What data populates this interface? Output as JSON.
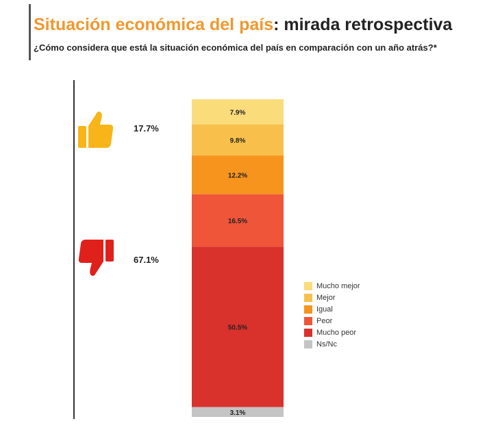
{
  "header": {
    "title_accent": "Situación económica del país",
    "title_rest": ": mirada retrospectiva",
    "subtitle": "¿Cómo considera que está la situación económica del país en comparación con un año atrás?*"
  },
  "summary": {
    "positive": {
      "icon": "thumbs-up-icon",
      "color": "#f7b519",
      "label": "17.7%"
    },
    "negative": {
      "icon": "thumbs-down-icon",
      "color": "#e0201b",
      "label": "67.1%"
    }
  },
  "chart_data": {
    "type": "bar",
    "stacked": true,
    "categories": [
      ""
    ],
    "series": [
      {
        "name": "Mucho mejor",
        "values": [
          7.9
        ],
        "label": "7.9%",
        "color": "#fbdc7b"
      },
      {
        "name": "Mejor",
        "values": [
          9.8
        ],
        "label": "9.8%",
        "color": "#f8c04b"
      },
      {
        "name": "Igual",
        "values": [
          12.2
        ],
        "label": "12.2%",
        "color": "#f6941d"
      },
      {
        "name": "Peor",
        "values": [
          16.5
        ],
        "label": "16.5%",
        "color": "#ef5539"
      },
      {
        "name": "Mucho peor",
        "values": [
          50.5
        ],
        "label": "50.5%",
        "color": "#d9312c"
      },
      {
        "name": "Ns/Nc",
        "values": [
          3.1
        ],
        "label": "3.1%",
        "color": "#c4c4c4"
      }
    ],
    "legend": "right"
  }
}
